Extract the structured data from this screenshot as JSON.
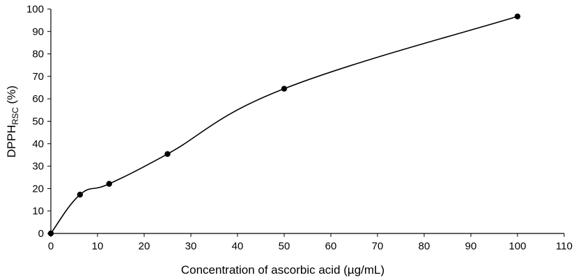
{
  "chart_data": {
    "type": "line",
    "title": "",
    "xlabel": "Concentration of  ascorbic acid (µg/mL)",
    "ylabel": {
      "base": "DPPH",
      "subscript": "RSC",
      "suffix": " (%)"
    },
    "xlim": [
      0,
      110
    ],
    "ylim": [
      0,
      100
    ],
    "xticks": [
      0,
      10,
      20,
      30,
      40,
      50,
      60,
      70,
      80,
      90,
      100,
      110
    ],
    "yticks": [
      0,
      10,
      20,
      30,
      40,
      50,
      60,
      70,
      80,
      90,
      100
    ],
    "grid": false,
    "legend": "none",
    "series": [
      {
        "x": [
          0,
          6.25,
          12.5,
          25,
          50,
          100
        ],
        "y": [
          0,
          17.3,
          22.1,
          35.4,
          64.5,
          96.7
        ],
        "color": "#000000",
        "marker": "circle",
        "smooth": true
      }
    ]
  }
}
